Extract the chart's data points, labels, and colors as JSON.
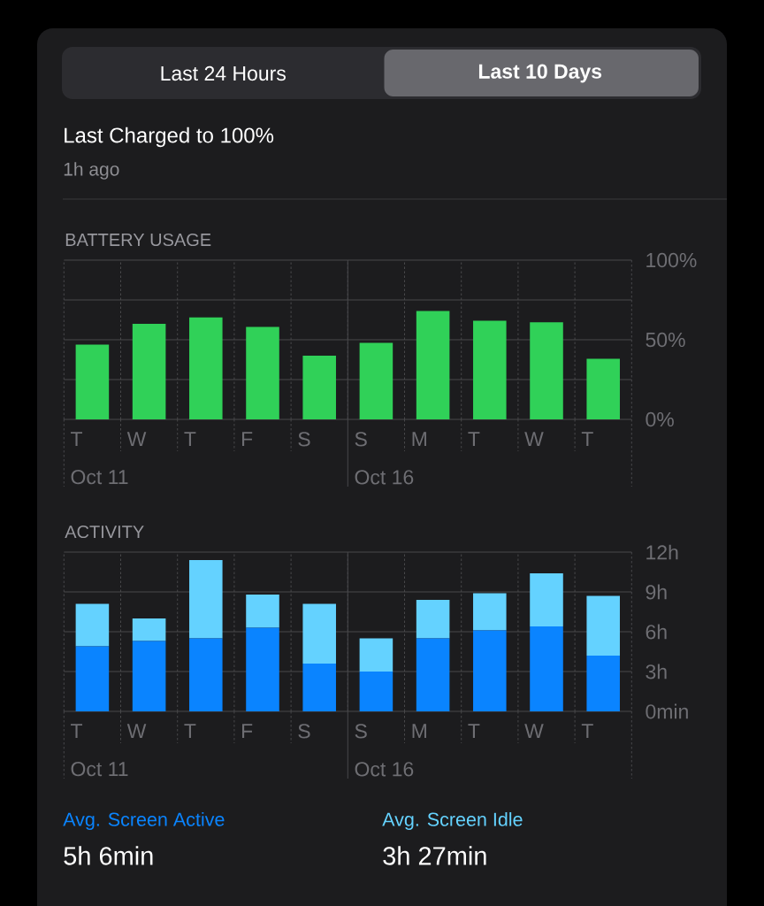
{
  "chart_data": [
    {
      "type": "other",
      "title": "Last Charged to 100%",
      "subtitle": "1h ago",
      "annotations": [
        "Last 24 Hours",
        "Last 10 Days"
      ]
    },
    {
      "type": "bar",
      "title": "BATTERY USAGE",
      "categories": [
        "T\nOct 11",
        "W",
        "T",
        "F",
        "S",
        "S\nOct 16",
        "M",
        "T",
        "W",
        "T"
      ],
      "values": [
        47,
        60,
        64,
        58,
        40,
        48,
        68,
        62,
        61,
        38
      ],
      "color": "#30d158",
      "ylim": [
        0,
        100
      ],
      "yticks": [
        {
          "value": 0,
          "label": "0%"
        },
        {
          "value": 25,
          "label": null
        },
        {
          "value": 50,
          "label": "50%"
        },
        {
          "value": 75,
          "label": null
        },
        {
          "value": 100,
          "label": "100%"
        }
      ],
      "grid": true
    },
    {
      "type": "bar",
      "title": "ACTIVITY",
      "categories": [
        "T\nOct 11",
        "W",
        "T",
        "F",
        "S",
        "S\nOct 16",
        "M",
        "T",
        "W",
        "T"
      ],
      "stacked": true,
      "series": [
        {
          "name": "Avg. Screen Active",
          "color": "#0a84ff",
          "values": [
            4.9,
            5.3,
            5.5,
            6.3,
            3.6,
            3.0,
            5.5,
            6.1,
            6.4,
            4.2
          ]
        },
        {
          "name": "Avg. Screen Idle",
          "color": "#64d2ff",
          "values": [
            3.2,
            1.7,
            5.9,
            2.5,
            4.5,
            2.5,
            2.9,
            2.8,
            4.0,
            4.5
          ]
        }
      ],
      "ylim": [
        0,
        12
      ],
      "yticks": [
        {
          "value": 0,
          "label": "0min"
        },
        {
          "value": 3,
          "label": "3h"
        },
        {
          "value": 6,
          "label": "6h"
        },
        {
          "value": 9,
          "label": "9h"
        },
        {
          "value": 12,
          "label": "12h"
        }
      ],
      "grid": true,
      "legend": "bottom",
      "annotations": [
        "5h 6min",
        "3h 27min"
      ]
    }
  ]
}
